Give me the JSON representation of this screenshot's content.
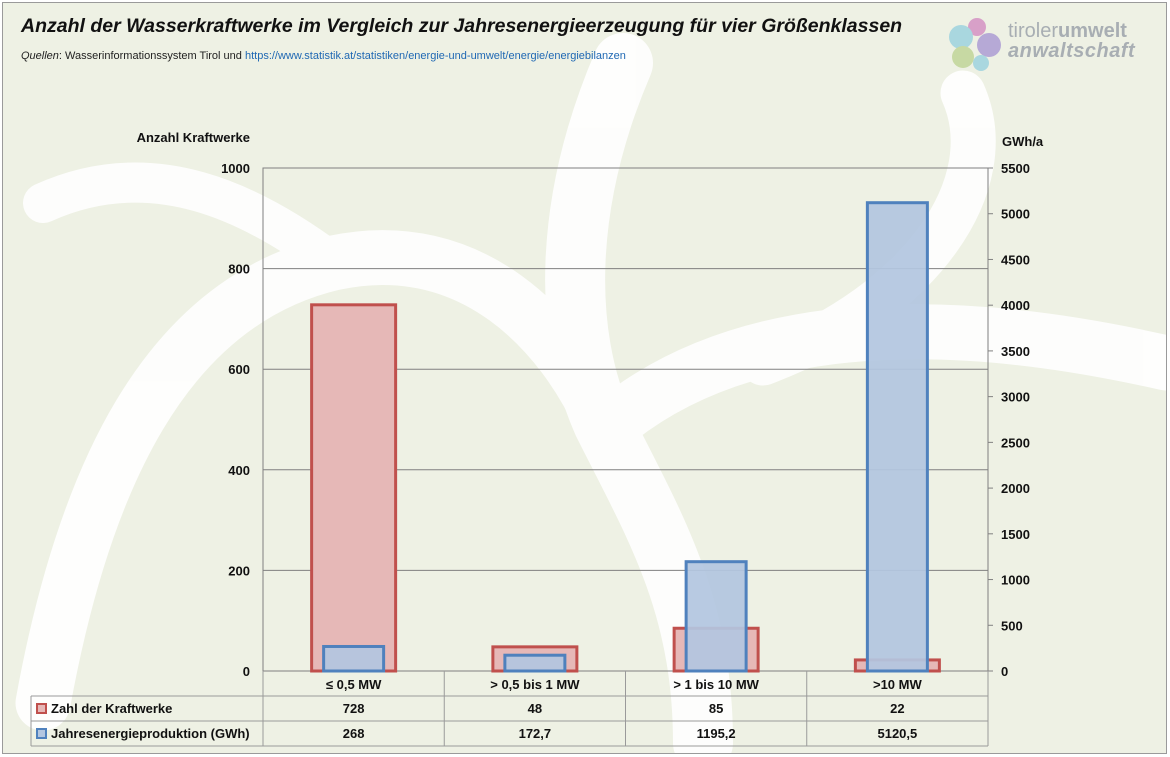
{
  "title": "Anzahl der Wasserkraftwerke im Vergleich zur Jahresenergieerzeugung für vier Größenklassen",
  "sources": {
    "label": "Quellen",
    "text": ": Wasserinformationssystem Tirol und ",
    "link": "https://www.statistik.at/statistiken/energie-und-umwelt/energie/energiebilanzen"
  },
  "logo": {
    "line1_a": "tiroler",
    "line1_b": "umwelt",
    "line2": "anwaltschaft"
  },
  "colors": {
    "red_fill": "#e6b8b7",
    "red_stroke": "#c0504d",
    "blue_fill": "#b3c6e0",
    "blue_stroke": "#4f81bd",
    "grid": "#808080"
  },
  "chart_data": {
    "type": "bar",
    "categories": [
      "≤ 0,5 MW",
      "> 0,5 bis 1 MW",
      "> 1 bis 10 MW",
      ">10 MW"
    ],
    "series": [
      {
        "name": "Zahl der Kraftwerke",
        "axis": "left",
        "values": [
          728,
          48,
          85,
          22
        ],
        "labels": [
          "728",
          "48",
          "85",
          "22"
        ]
      },
      {
        "name": "Jahresenergieproduktion (GWh)",
        "axis": "right",
        "values": [
          268,
          172.7,
          1195.2,
          5120.5
        ],
        "labels": [
          "268",
          "172,7",
          "1195,2",
          "5120,5"
        ]
      }
    ],
    "ylabel_left": "Anzahl Kraftwerke",
    "ylabel_right": "GWh/a",
    "ylim_left": [
      0,
      1000
    ],
    "ylim_right": [
      0,
      5500
    ],
    "yticks_left": [
      0,
      200,
      400,
      600,
      800,
      1000
    ],
    "yticks_right": [
      0,
      500,
      1000,
      1500,
      2000,
      2500,
      3000,
      3500,
      4000,
      4500,
      5000,
      5500
    ],
    "grid": true,
    "legend": "data-table"
  }
}
